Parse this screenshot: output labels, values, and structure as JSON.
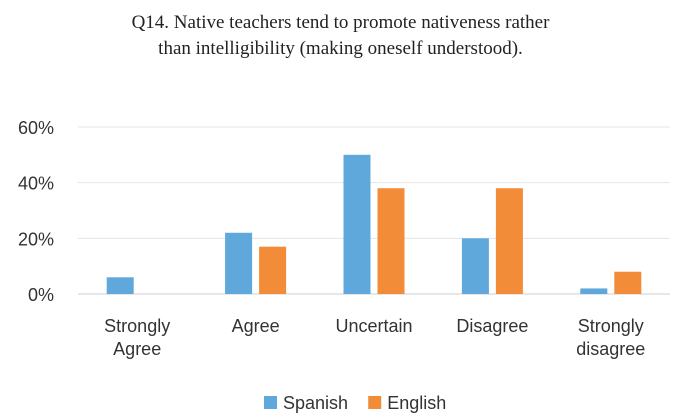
{
  "chart_data": {
    "type": "bar",
    "title_lines": [
      "Q14. Native teachers tend to promote nativeness rather",
      "than intelligibility (making oneself understood)."
    ],
    "categories": [
      [
        "Strongly",
        "Agree"
      ],
      [
        "Agree"
      ],
      [
        "Uncertain"
      ],
      [
        "Disagree"
      ],
      [
        "Strongly",
        "disagree"
      ]
    ],
    "series": [
      {
        "name": "Spanish",
        "color": "#5fa8dc",
        "values": [
          6,
          22,
          50,
          20,
          2
        ]
      },
      {
        "name": "English",
        "color": "#f28c38",
        "values": [
          0,
          17,
          38,
          38,
          8
        ]
      }
    ],
    "y_ticks": [
      "0%",
      "20%",
      "40%",
      "60%"
    ],
    "y_tick_values": [
      0,
      20,
      40,
      60
    ],
    "ylim": [
      0,
      60
    ],
    "grid": true,
    "legend_position": "bottom"
  }
}
